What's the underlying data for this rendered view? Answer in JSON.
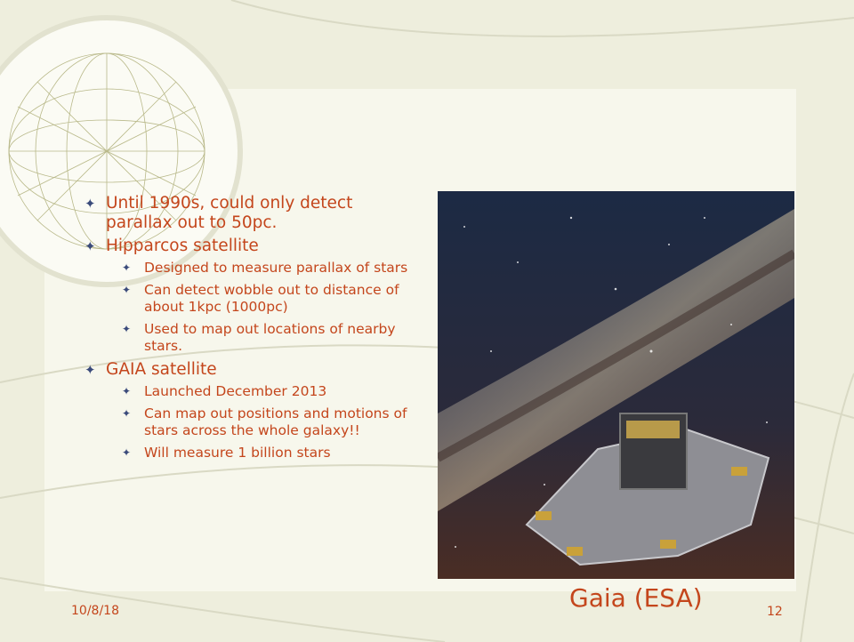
{
  "bullets": [
    {
      "text": "Until 1990s, could only detect parallax out to 50pc.",
      "children": []
    },
    {
      "text": "Hipparcos satellite",
      "children": [
        "Designed to measure parallax of stars",
        "Can detect wobble out to distance of about 1kpc (1000pc)",
        "Used to map out locations of nearby stars."
      ]
    },
    {
      "text": "GAIA satellite",
      "children": [
        "Launched December 2013",
        "Can map out positions and motions of stars across the whole galaxy!!",
        "Will measure 1 billion stars"
      ]
    }
  ],
  "image_caption": "Gaia (ESA)",
  "footer": {
    "date": "10/8/18",
    "page_number": "12"
  }
}
